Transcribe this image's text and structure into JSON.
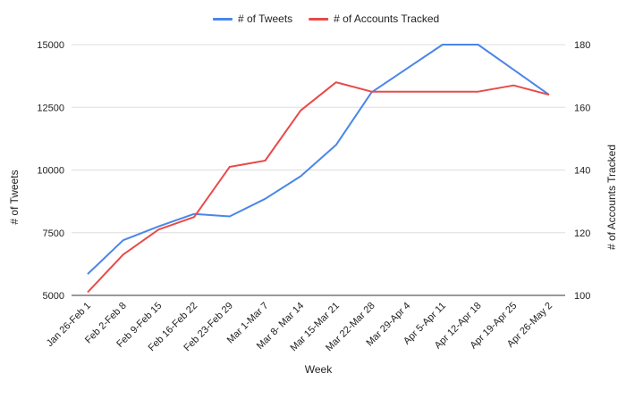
{
  "chart_data": {
    "type": "line",
    "title": "",
    "xlabel": "Week",
    "ylabel_left": "# of Tweets",
    "ylabel_right": "# of Accounts Tracked",
    "categories": [
      "Jan 26-Feb 1",
      "Feb 2-Feb 8",
      "Feb 9-Feb 15",
      "Feb 16-Feb 22",
      "Feb 23-Feb 29",
      "Mar 1-Mar 7",
      "Mar 8- Mar 14",
      "Mar 15-Mar 21",
      "Mar 22-Mar 28",
      "Mar 29-Apr 4",
      "Apr 5-Apr 11",
      "Apr 12-Apr 18",
      "Apr 19-Apr 25",
      "Apr 26-May 2"
    ],
    "series": [
      {
        "name": "# of Tweets",
        "axis": "left",
        "color": "#4a86e8",
        "values": [
          5850,
          7200,
          7750,
          8250,
          8150,
          8850,
          9750,
          11000,
          13100,
          14050,
          15000,
          15000,
          14000,
          13000
        ]
      },
      {
        "name": "# of Accounts Tracked",
        "axis": "right",
        "color": "#e84a4a",
        "values": [
          101,
          113,
          121,
          125,
          141,
          143,
          159,
          168,
          165,
          165,
          165,
          165,
          167,
          164
        ]
      }
    ],
    "ylim_left": [
      5000,
      15000
    ],
    "ylim_right": [
      100,
      180
    ],
    "yticks_left": [
      "5000",
      "7500",
      "10000",
      "12500",
      "15000"
    ],
    "yticks_right": [
      "100",
      "120",
      "140",
      "160",
      "180"
    ],
    "grid": true,
    "legend": "top-center"
  }
}
